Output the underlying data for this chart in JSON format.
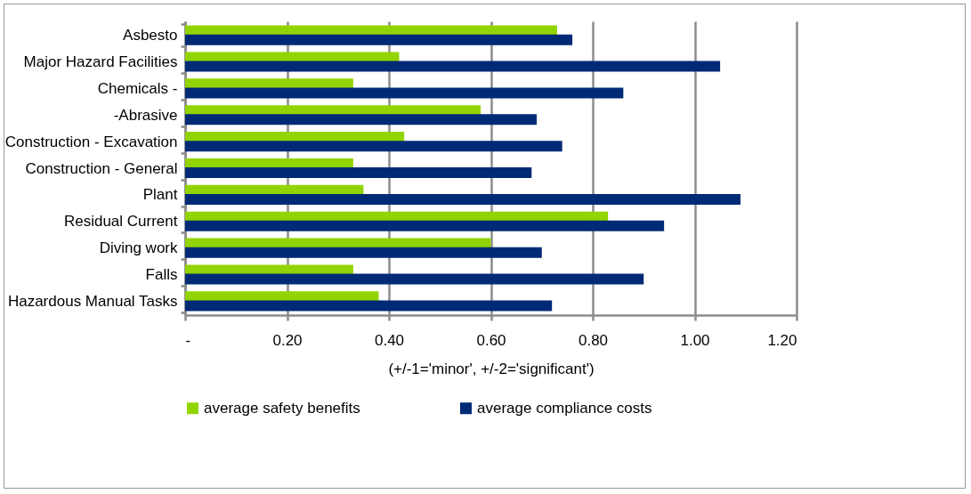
{
  "chart_data": {
    "type": "bar",
    "orientation": "horizontal",
    "xlabel": "(+/-1='minor', +/-2='significant')",
    "categories": [
      "Asbesto",
      "Major Hazard Facilities",
      "Chemicals -",
      "-Abrasive",
      "Construction - Excavation",
      "Construction - General",
      "Plant",
      "Residual Current",
      "Diving work",
      "Falls",
      "Hazardous Manual Tasks"
    ],
    "series": [
      {
        "name": "average safety benefits",
        "color": "#92d400",
        "values": [
          0.73,
          0.42,
          0.33,
          0.58,
          0.43,
          0.33,
          0.35,
          0.83,
          0.6,
          0.33,
          0.38
        ]
      },
      {
        "name": "average compliance costs",
        "color": "#002a76",
        "values": [
          0.76,
          1.05,
          0.86,
          0.69,
          0.74,
          0.68,
          1.09,
          0.94,
          0.7,
          0.9,
          0.72
        ]
      }
    ],
    "xlim": [
      0,
      1.2
    ],
    "xticks": [
      {
        "value": 0,
        "label": "-"
      },
      {
        "value": 0.2,
        "label": "0.20"
      },
      {
        "value": 0.4,
        "label": "0.40"
      },
      {
        "value": 0.6,
        "label": "0.60"
      },
      {
        "value": 0.8,
        "label": "0.80"
      },
      {
        "value": 1.0,
        "label": "1.00"
      },
      {
        "value": 1.2,
        "label": "1.20"
      }
    ],
    "grid": "x",
    "legend": "bottom"
  }
}
